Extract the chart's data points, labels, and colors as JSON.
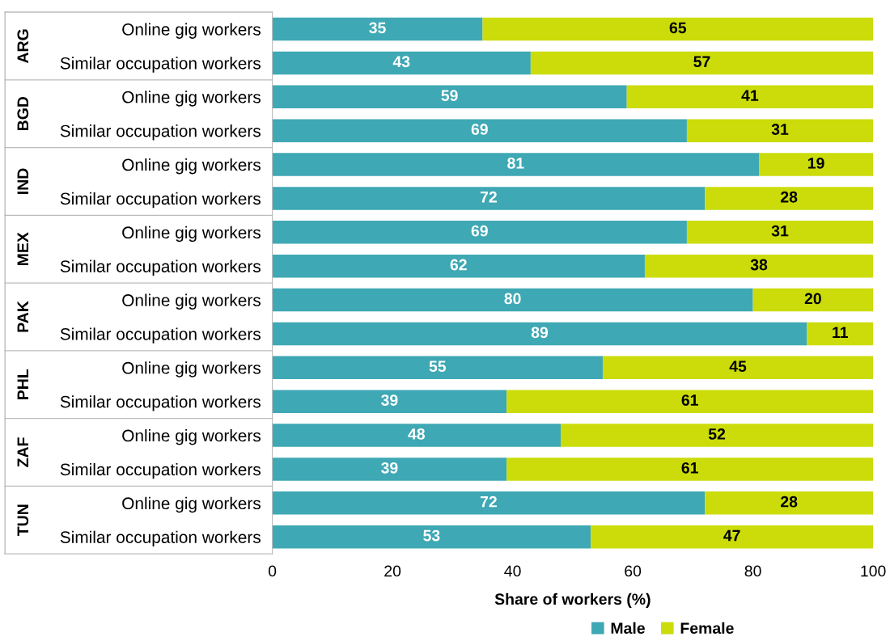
{
  "chart_data": {
    "type": "bar",
    "orientation": "horizontal",
    "stacked": true,
    "categories": [
      "Online gig workers",
      "Similar occupation workers",
      "Online gig workers",
      "Similar occupation workers",
      "Online gig workers",
      "Similar occupation workers",
      "Online gig workers",
      "Similar occupation workers",
      "Online gig workers",
      "Similar occupation workers",
      "Online gig workers",
      "Similar occupation workers",
      "Online gig workers",
      "Similar occupation workers",
      "Online gig workers",
      "Similar occupation workers"
    ],
    "series": [
      {
        "name": "Male",
        "color": "#3ea8b4",
        "values": [
          35,
          43,
          59,
          69,
          81,
          72,
          69,
          62,
          80,
          89,
          55,
          39,
          48,
          39,
          72,
          53
        ]
      },
      {
        "name": "Female",
        "color": "#cbdc0a",
        "values": [
          65,
          57,
          41,
          31,
          19,
          28,
          31,
          38,
          20,
          11,
          45,
          61,
          52,
          61,
          28,
          47
        ]
      }
    ],
    "annotations": [
      "ARG",
      "BGD",
      "IND",
      "MEX",
      "PAK",
      "PHL",
      "ZAF",
      "TUN"
    ],
    "xlabel": "Share of workers (%)",
    "xlim": [
      0,
      100
    ],
    "xticks": [
      0,
      20,
      40,
      60,
      80,
      100
    ],
    "data_labels": true,
    "grid": false,
    "legend": "bottom"
  }
}
